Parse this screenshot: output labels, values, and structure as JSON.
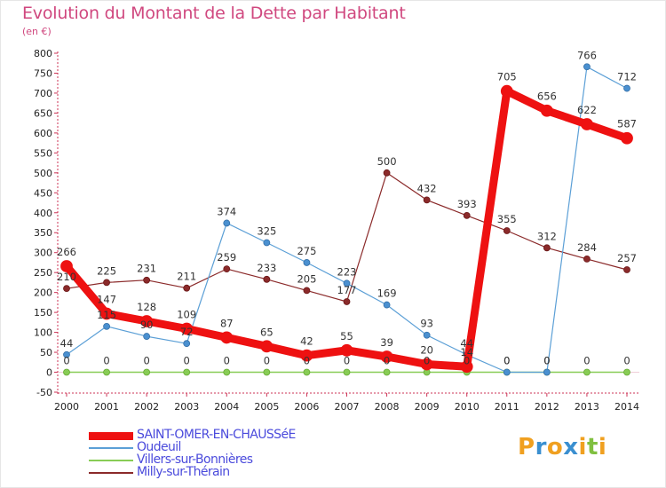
{
  "header": {
    "title": "Evolution du Montant de la Dette par Habitant",
    "subtitle": "(en €)"
  },
  "logo": {
    "letters": [
      "P",
      "r",
      "o",
      "x",
      "i",
      "t",
      "i"
    ],
    "colors": [
      "#f0a020",
      "#3a8fd0",
      "#f0a020",
      "#3a8fd0",
      "#f0a020",
      "#80c040",
      "#f0a020"
    ]
  },
  "chart_data": {
    "type": "line",
    "title": "Evolution du Montant de la Dette par Habitant",
    "subtitle": "(en €)",
    "xlabel": "",
    "ylabel": "",
    "x": [
      "2000",
      "2001",
      "2002",
      "2003",
      "2004",
      "2005",
      "2006",
      "2007",
      "2008",
      "2009",
      "2010",
      "2011",
      "2012",
      "2013",
      "2014"
    ],
    "ylim": [
      -50,
      800
    ],
    "yticks": [
      -50,
      0,
      50,
      100,
      150,
      200,
      250,
      300,
      350,
      400,
      450,
      500,
      550,
      600,
      650,
      700,
      750,
      800
    ],
    "grid": false,
    "legend_position": "bottom-left",
    "series": [
      {
        "name": "SAINT-OMER-EN-CHAUSSéE",
        "color": "#ee1111",
        "values": [
          266,
          147,
          128,
          109,
          87,
          65,
          42,
          55,
          39,
          20,
          14,
          705,
          656,
          622,
          587
        ],
        "labels": [
          "266",
          "147",
          "128",
          "109",
          "87",
          "65",
          "42",
          "55",
          "39",
          "20",
          "14",
          "705",
          "656",
          "622",
          "587"
        ]
      },
      {
        "name": "Oudeuil",
        "color": "#5b9fd6",
        "values": [
          44,
          115,
          90,
          72,
          374,
          325,
          275,
          223,
          169,
          93,
          44,
          0,
          0,
          766,
          712
        ],
        "labels": [
          "44",
          "115",
          "90",
          "72",
          "374",
          "325",
          "275",
          "223",
          "169",
          "93",
          "44",
          "0",
          "0",
          "766",
          "712"
        ]
      },
      {
        "name": "Villers-sur-Bonnières",
        "color": "#88cc55",
        "values": [
          0,
          0,
          0,
          0,
          0,
          0,
          0,
          0,
          0,
          0,
          0,
          0,
          0,
          0,
          0
        ],
        "labels": [
          "0",
          "0",
          "0",
          "0",
          "0",
          "0",
          "0",
          "0",
          "0",
          "0",
          "0",
          "0",
          "0",
          "0",
          "0"
        ]
      },
      {
        "name": "Milly-sur-Thérain",
        "color": "#8b2a2a",
        "values": [
          210,
          225,
          231,
          211,
          259,
          233,
          205,
          177,
          500,
          432,
          393,
          355,
          312,
          284,
          257
        ],
        "labels": [
          "210",
          "225",
          "231",
          "211",
          "259",
          "233",
          "205",
          "177",
          "500",
          "432",
          "393",
          "355",
          "312",
          "284",
          "257"
        ]
      }
    ]
  }
}
